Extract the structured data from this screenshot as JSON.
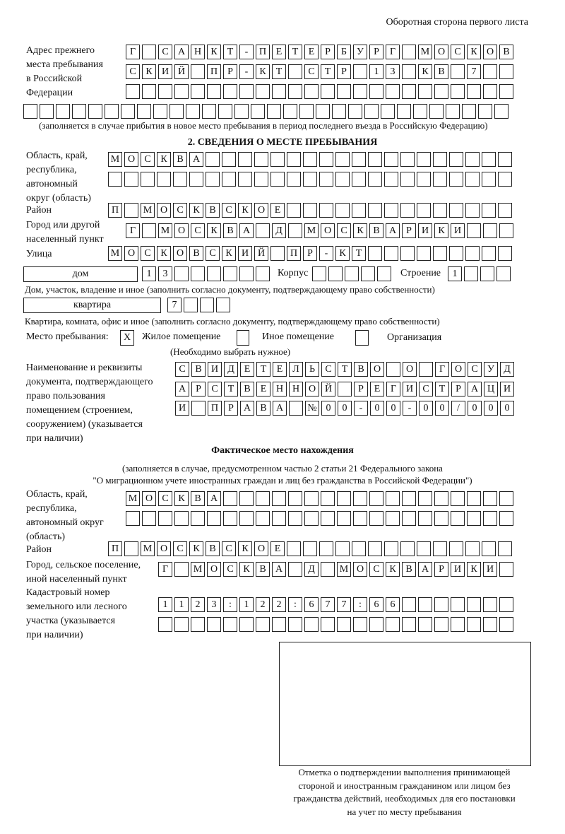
{
  "header": "Оборотная сторона первого листа",
  "previous_address": {
    "label": [
      "Адрес прежнего",
      "места пребывания",
      "в Российской",
      "Федерации"
    ],
    "rows": [
      [
        "Г",
        "",
        "С",
        "А",
        "Н",
        "К",
        "Т",
        "-",
        "П",
        "Е",
        "Т",
        "Е",
        "Р",
        "Б",
        "У",
        "Р",
        "Г",
        "",
        "М",
        "О",
        "С",
        "К",
        "О",
        "В"
      ],
      [
        "С",
        "К",
        "И",
        "Й",
        "",
        "П",
        "Р",
        "-",
        "К",
        "Т",
        "",
        "С",
        "Т",
        "Р",
        "",
        "1",
        "3",
        "",
        "К",
        "В",
        "",
        "7",
        "",
        ""
      ],
      [
        "",
        "",
        "",
        "",
        "",
        "",
        "",
        "",
        "",
        "",
        "",
        "",
        "",
        "",
        "",
        "",
        "",
        "",
        "",
        "",
        "",
        "",
        "",
        ""
      ],
      [
        "",
        "",
        "",
        "",
        "",
        "",
        "",
        "",
        "",
        "",
        "",
        "",
        "",
        "",
        "",
        "",
        "",
        "",
        "",
        "",
        "",
        "",
        "",
        "",
        "",
        "",
        "",
        "",
        "",
        ""
      ]
    ],
    "note": "(заполняется в случае прибытия в новое место пребывания в период последнего въезда в Российскую Федерацию)"
  },
  "section2": {
    "title": "2. СВЕДЕНИЯ О МЕСТЕ ПРЕБЫВАНИЯ",
    "region_label": [
      "Область, край,",
      "республика,",
      "автономный",
      "округ (область)"
    ],
    "region_rows": [
      [
        "М",
        "О",
        "С",
        "К",
        "В",
        "А",
        "",
        "",
        "",
        "",
        "",
        "",
        "",
        "",
        "",
        "",
        "",
        "",
        "",
        "",
        "",
        "",
        "",
        "",
        ""
      ],
      [
        "",
        "",
        "",
        "",
        "",
        "",
        "",
        "",
        "",
        "",
        "",
        "",
        "",
        "",
        "",
        "",
        "",
        "",
        "",
        "",
        "",
        "",
        "",
        "",
        ""
      ]
    ],
    "district_label": "Район",
    "district_row": [
      "П",
      "",
      "М",
      "О",
      "С",
      "К",
      "В",
      "С",
      "К",
      "О",
      "Е",
      "",
      "",
      "",
      "",
      "",
      "",
      "",
      "",
      "",
      "",
      "",
      "",
      "",
      ""
    ],
    "city_label": [
      "Город или другой",
      "населенный пункт"
    ],
    "city_row": [
      "Г",
      "",
      "М",
      "О",
      "С",
      "К",
      "В",
      "А",
      "",
      "Д",
      "",
      "М",
      "О",
      "С",
      "К",
      "В",
      "А",
      "Р",
      "И",
      "К",
      "И",
      "",
      "",
      ""
    ],
    "street_label": "Улица",
    "street_row": [
      "М",
      "О",
      "С",
      "К",
      "О",
      "В",
      "С",
      "К",
      "И",
      "Й",
      "",
      "П",
      "Р",
      "-",
      "К",
      "Т",
      "",
      "",
      "",
      "",
      "",
      "",
      "",
      "",
      ""
    ],
    "house_type": "дом",
    "house_cells": [
      "1",
      "3",
      "",
      "",
      "",
      "",
      "",
      ""
    ],
    "korpus_label": "Корпус",
    "korpus_cells": [
      "",
      "",
      "",
      "",
      ""
    ],
    "building_label": "Строение",
    "building_cells": [
      "1",
      "",
      "",
      ""
    ],
    "house_note": "Дом, участок, владение и иное (заполнить согласно документу, подтверждающему право собственности)",
    "flat_type": "квартира",
    "flat_cells": [
      "7",
      "",
      "",
      ""
    ],
    "flat_note": "Квартира, комната, офис и иное (заполнить согласно документу, подтверждающему право собственности)",
    "stay_place_label": "Место пребывания:",
    "stay_options": [
      {
        "label": "Жилое помещение",
        "mark": "X"
      },
      {
        "label": "Иное помещение",
        "mark": ""
      },
      {
        "label": "Организация",
        "mark": ""
      }
    ],
    "stay_note": "(Необходимо выбрать нужное)",
    "document_label": [
      "Наименование и реквизиты",
      "документа, подтверждающего",
      "право пользования",
      "помещением (строением,",
      "сооружением) (указывается",
      "при наличии)"
    ],
    "document_rows": [
      [
        "С",
        "В",
        "И",
        "Д",
        "Е",
        "Т",
        "Е",
        "Л",
        "Ь",
        "С",
        "Т",
        "В",
        "О",
        "",
        "О",
        "",
        "Г",
        "О",
        "С",
        "У",
        "Д"
      ],
      [
        "А",
        "Р",
        "С",
        "Т",
        "В",
        "Е",
        "Н",
        "Н",
        "О",
        "Й",
        "",
        "Р",
        "Е",
        "Г",
        "И",
        "С",
        "Т",
        "Р",
        "А",
        "Ц",
        "И"
      ],
      [
        "И",
        "",
        "П",
        "Р",
        "А",
        "В",
        "А",
        "",
        "№",
        "0",
        "0",
        "-",
        "0",
        "0",
        "-",
        "0",
        "0",
        "/",
        "0",
        "0",
        "0"
      ]
    ]
  },
  "actual": {
    "title": "Фактическое место нахождения",
    "note": [
      "(заполняется в случае, предусмотренном частью 2 статьи 21 Федерального закона",
      "\"О миграционном учете иностранных граждан и лиц без гражданства в Российской Федерации\")"
    ],
    "region_label": [
      "Область, край,",
      "республика,",
      "автономный округ",
      "(область)"
    ],
    "region_rows": [
      [
        "М",
        "О",
        "С",
        "К",
        "В",
        "А",
        "",
        "",
        "",
        "",
        "",
        "",
        "",
        "",
        "",
        "",
        "",
        "",
        "",
        "",
        "",
        "",
        "",
        ""
      ],
      [
        "",
        "",
        "",
        "",
        "",
        "",
        "",
        "",
        "",
        "",
        "",
        "",
        "",
        "",
        "",
        "",
        "",
        "",
        "",
        "",
        "",
        "",
        "",
        ""
      ]
    ],
    "district_label": "Район",
    "district_row": [
      "П",
      "",
      "М",
      "О",
      "С",
      "К",
      "В",
      "С",
      "К",
      "О",
      "Е",
      "",
      "",
      "",
      "",
      "",
      "",
      "",
      "",
      "",
      "",
      "",
      "",
      "",
      ""
    ],
    "city_label": [
      "Город, сельское поселение,",
      "иной населенный пункт"
    ],
    "city_row": [
      "Г",
      "",
      "М",
      "О",
      "С",
      "К",
      "В",
      "А",
      "",
      "Д",
      "",
      "М",
      "О",
      "С",
      "К",
      "В",
      "А",
      "Р",
      "И",
      "К",
      "И",
      ""
    ],
    "cadastral_label": [
      "Кадастровый номер",
      "земельного или лесного",
      "участка (указывается",
      "при наличии)"
    ],
    "cadastral_rows": [
      [
        "1",
        "1",
        "2",
        "3",
        ":",
        "1",
        "2",
        "2",
        ":",
        "6",
        "7",
        "7",
        ":",
        "6",
        "6",
        "",
        "",
        "",
        "",
        "",
        "",
        ""
      ],
      [
        "",
        "",
        "",
        "",
        "",
        "",
        "",
        "",
        "",
        "",
        "",
        "",
        "",
        "",
        "",
        "",
        "",
        "",
        "",
        "",
        "",
        ""
      ]
    ]
  },
  "confirmation_caption": [
    "Отметка о подтверждении выполнения принимающей",
    "стороной и иностранным гражданином или лицом без",
    "гражданства действий, необходимых для его постановки",
    "на учет по месту пребывания"
  ]
}
